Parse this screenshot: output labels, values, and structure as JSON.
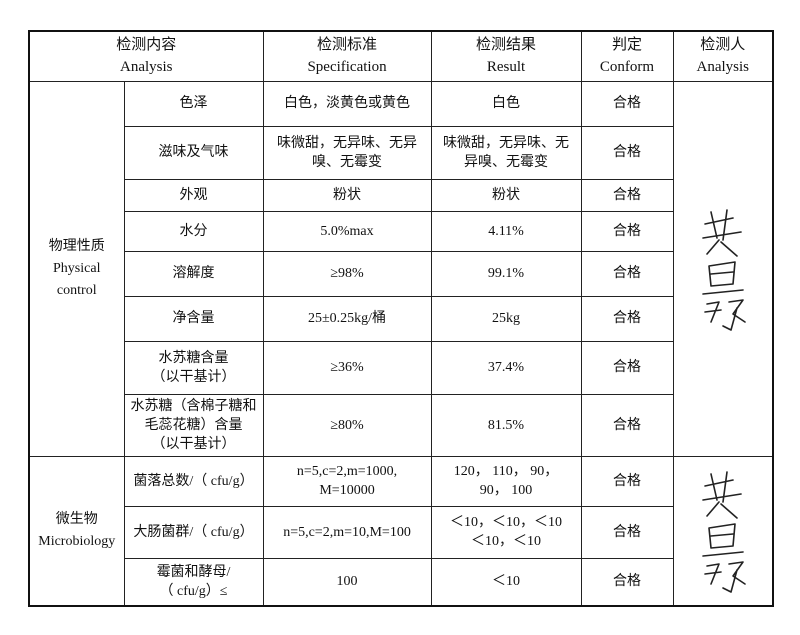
{
  "header": [
    [
      "检测内容",
      "Analysis"
    ],
    [
      "检测标准",
      "Specification"
    ],
    [
      "检测结果",
      "Result"
    ],
    [
      "判定",
      "Conform"
    ],
    [
      "检测人",
      "Analysis"
    ]
  ],
  "groups": [
    {
      "label": [
        "物理性质",
        "Physical",
        "control"
      ],
      "rows": [
        {
          "item": "色泽",
          "spec": "白色，淡黄色或黄色",
          "result": "白色",
          "conform": "合格"
        },
        {
          "item": "滋味及气味",
          "spec": [
            "味微甜，无异味、无异",
            "嗅、无霉变"
          ],
          "result": [
            "味微甜，无异味、无",
            "异嗅、无霉变"
          ],
          "conform": "合格"
        },
        {
          "item": "外观",
          "spec": "粉状",
          "result": "粉状",
          "conform": "合格"
        },
        {
          "item": "水分",
          "spec": "5.0%max",
          "result": "4.11%",
          "conform": "合格"
        },
        {
          "item": "溶解度",
          "spec": "≥98%",
          "result": "99.1%",
          "conform": "合格"
        },
        {
          "item": "净含量",
          "spec": "25±0.25kg/桶",
          "result": "25kg",
          "conform": "合格"
        },
        {
          "item": [
            "水苏糖含量",
            "（以干基计）"
          ],
          "spec": "≥36%",
          "result": "37.4%",
          "conform": "合格"
        },
        {
          "item": [
            "水苏糖（含棉子糖和",
            "毛蕊花糖）含量",
            "（以干基计）"
          ],
          "spec": "≥80%",
          "result": "81.5%",
          "conform": "合格"
        }
      ]
    },
    {
      "label": [
        "微生物",
        "Microbiology"
      ],
      "rows": [
        {
          "item": "菌落总数/（ cfu/g）",
          "spec": [
            "n=5,c=2,m=1000,",
            "M=10000"
          ],
          "result": [
            "120，  110，  90，",
            "90，  100"
          ],
          "conform": "合格"
        },
        {
          "item": "大肠菌群/（ cfu/g）",
          "spec": "n=5,c=2,m=10,M=100",
          "result": [
            "＜10，＜10，＜10",
            "＜10，＜10"
          ],
          "conform": "合格"
        },
        {
          "item": [
            "霉菌和酵母/",
            "（ cfu/g）≤"
          ],
          "spec": "100",
          "result": "＜10",
          "conform": "合格"
        }
      ]
    }
  ]
}
